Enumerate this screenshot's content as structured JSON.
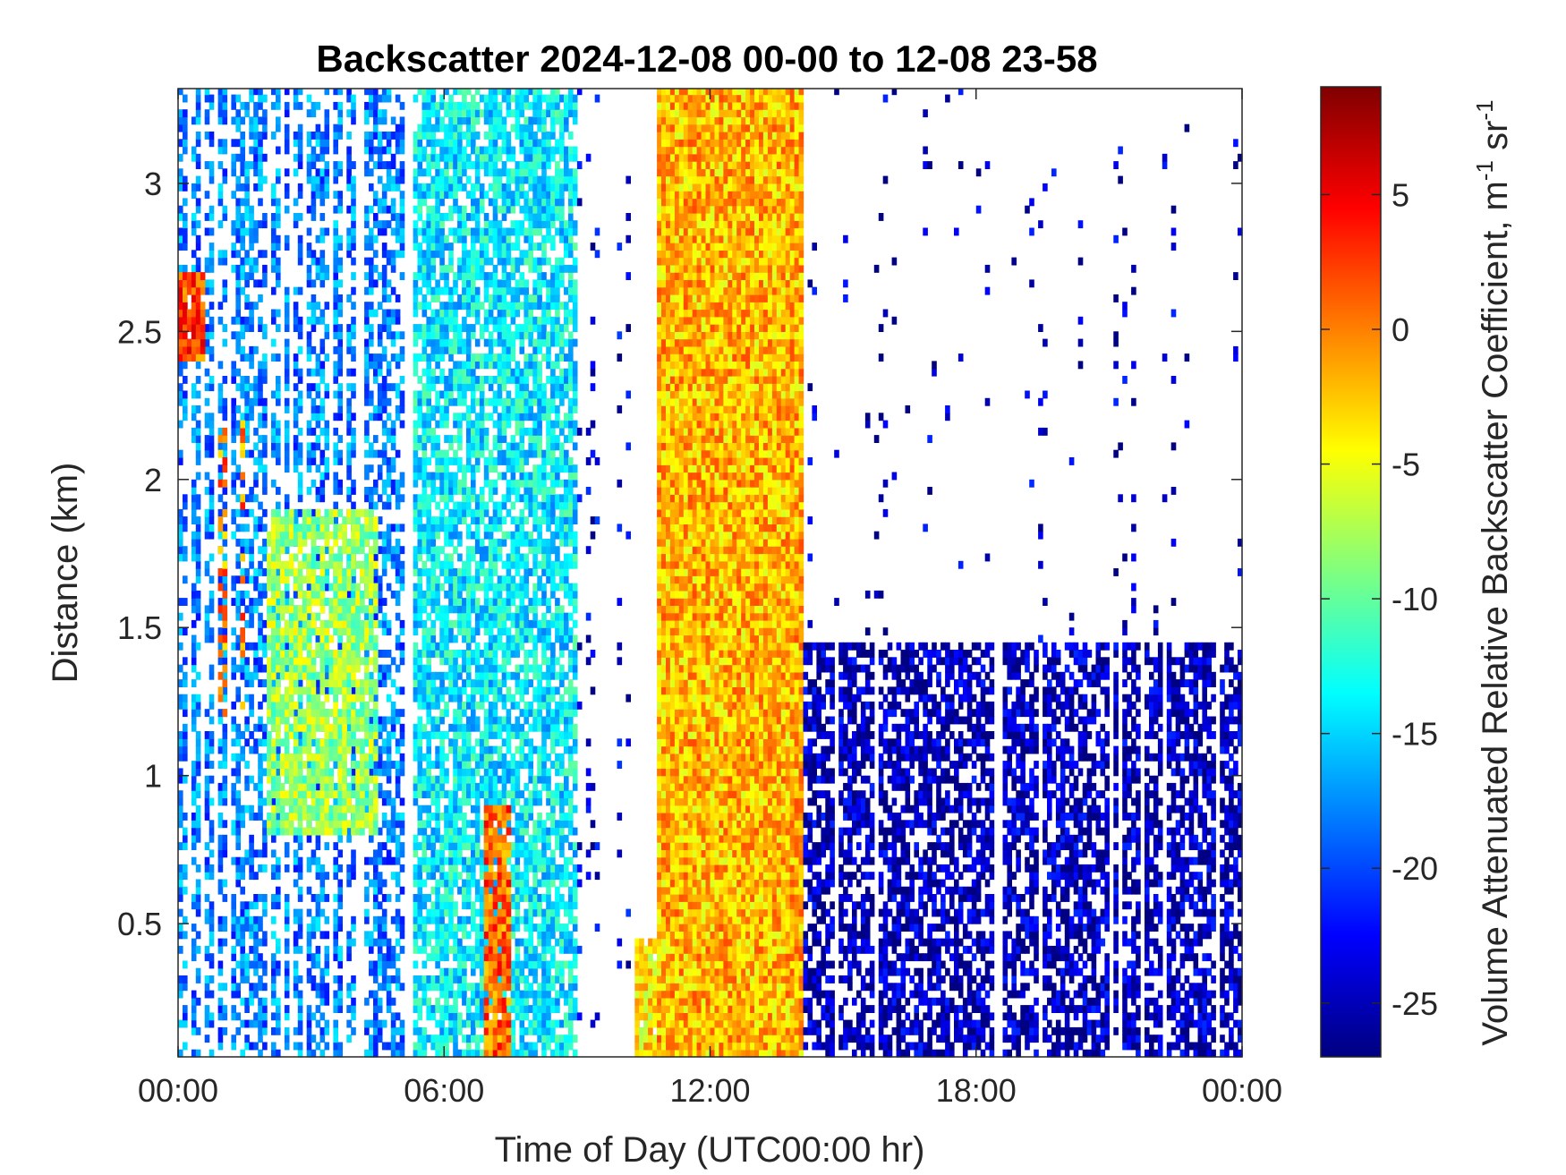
{
  "chart_data": {
    "type": "heatmap",
    "title": "Backscatter 2024-12-08 00-00 to 12-08 23-58",
    "xlabel": "Time of Day (UTC00:00 hr)",
    "ylabel": "Distance (km)",
    "colorbar_label": "Volume Attenuated Relative Backscatter Coefficient, m",
    "colorbar_label_sup1": "-1",
    "colorbar_label_mid": " sr",
    "colorbar_label_sup2": "-1",
    "x_unit": "hours",
    "xlim": [
      0,
      24
    ],
    "ylim": [
      0.05,
      3.32
    ],
    "clim": [
      -27,
      9
    ],
    "colormap": "jet",
    "grid": false,
    "x_ticks": [
      {
        "value": 0,
        "label": "00:00"
      },
      {
        "value": 6,
        "label": "06:00"
      },
      {
        "value": 12,
        "label": "12:00"
      },
      {
        "value": 18,
        "label": "18:00"
      },
      {
        "value": 24,
        "label": "00:00"
      }
    ],
    "y_ticks": [
      {
        "value": 0.5,
        "label": "0.5"
      },
      {
        "value": 1,
        "label": "1"
      },
      {
        "value": 1.5,
        "label": "1.5"
      },
      {
        "value": 2,
        "label": "2"
      },
      {
        "value": 2.5,
        "label": "2.5"
      },
      {
        "value": 3,
        "label": "3"
      }
    ],
    "colorbar_ticks": [
      {
        "value": -25,
        "label": "-25"
      },
      {
        "value": -20,
        "label": "-20"
      },
      {
        "value": -15,
        "label": "-15"
      },
      {
        "value": -10,
        "label": "-10"
      },
      {
        "value": -5,
        "label": "-5"
      },
      {
        "value": 0,
        "label": "0"
      },
      {
        "value": 5,
        "label": "5"
      }
    ],
    "regions": [
      {
        "name": "early-night-mixed-cloud",
        "t_start": 0.0,
        "t_end": 5.3,
        "z_min": 0.05,
        "z_max": 3.32,
        "typical_value": -18,
        "coverage": 0.55
      },
      {
        "name": "elevated-layer-0000",
        "t_start": 0.0,
        "t_end": 0.6,
        "z_min": 2.4,
        "z_max": 2.7,
        "typical_value": 2,
        "coverage": 0.9
      },
      {
        "name": "elevated-layer-0100",
        "t_start": 0.9,
        "t_end": 1.6,
        "z_min": 1.2,
        "z_max": 2.2,
        "typical_value": 0,
        "coverage": 0.4
      },
      {
        "name": "descending-plume-0230",
        "t_start": 2.0,
        "t_end": 4.5,
        "z_min": 0.8,
        "z_max": 1.9,
        "typical_value": -8,
        "coverage": 0.8
      },
      {
        "name": "morning-column",
        "t_start": 5.3,
        "t_end": 9.0,
        "z_min": 0.05,
        "z_max": 3.32,
        "typical_value": -14,
        "coverage": 0.75
      },
      {
        "name": "precip-streak-0700",
        "t_start": 6.9,
        "t_end": 7.5,
        "z_min": 0.05,
        "z_max": 0.9,
        "typical_value": 1,
        "coverage": 0.9
      },
      {
        "name": "clear-gap",
        "t_start": 9.0,
        "t_end": 10.3,
        "z_min": 0.05,
        "z_max": 3.32,
        "typical_value": -24,
        "coverage": 0.08
      },
      {
        "name": "ramp-1030",
        "t_start": 10.3,
        "t_end": 11.3,
        "z_min": 0.05,
        "z_max": 0.45,
        "typical_value": -4,
        "coverage": 0.9
      },
      {
        "name": "dense-fog-column",
        "t_start": 10.8,
        "t_end": 14.1,
        "z_min": 0.05,
        "z_max": 3.32,
        "typical_value": -2,
        "coverage": 1.0
      },
      {
        "name": "evening-low-cloud",
        "t_start": 14.1,
        "t_end": 24.0,
        "z_min": 0.05,
        "z_max": 1.45,
        "typical_value": -25,
        "coverage": 0.65
      },
      {
        "name": "evening-sparse-aloft",
        "t_start": 14.1,
        "t_end": 24.0,
        "z_min": 1.45,
        "z_max": 3.32,
        "typical_value": -25,
        "coverage": 0.05
      }
    ]
  }
}
